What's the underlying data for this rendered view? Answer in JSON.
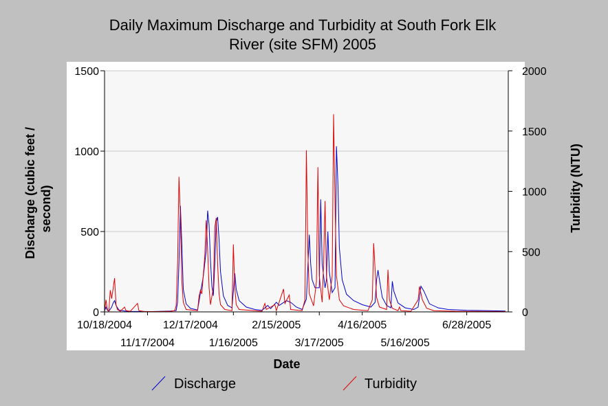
{
  "chart_data": {
    "type": "line",
    "title_line1": "Daily Maximum Discharge and Turbidity at South Fork Elk",
    "title_line2": "River (site SFM) 2005",
    "xlabel": "Date",
    "ylabel_left_line1": "Discharge (cubic feet /",
    "ylabel_left_line2": "second)",
    "ylabel_right": "Turbidity (NTU)",
    "xlim": [
      "2004-10-18",
      "2005-07-27"
    ],
    "ylim_left": [
      0,
      1500
    ],
    "ylim_right": [
      0,
      2000
    ],
    "x_ticks_top": [
      "10/18/2004",
      "12/17/2004",
      "2/15/2005",
      "4/16/2005",
      "6/28/2005"
    ],
    "x_ticks_bottom": [
      "11/17/2004",
      "1/16/2005",
      "3/17/2005",
      "5/16/2005"
    ],
    "y_ticks_left": [
      "0",
      "500",
      "1000",
      "1500"
    ],
    "y_ticks_right": [
      "0",
      "500",
      "1000",
      "1500",
      "2000"
    ],
    "grid": true,
    "legend_position": "bottom",
    "series": [
      {
        "name": "Discharge",
        "axis": "left",
        "color": "#0000cc",
        "points": [
          [
            "2004-10-18",
            5
          ],
          [
            "2004-10-19",
            30
          ],
          [
            "2004-10-20",
            10
          ],
          [
            "2004-10-21",
            4
          ],
          [
            "2004-10-23",
            30
          ],
          [
            "2004-10-24",
            55
          ],
          [
            "2004-10-25",
            70
          ],
          [
            "2004-10-26",
            40
          ],
          [
            "2004-10-28",
            12
          ],
          [
            "2004-11-01",
            5
          ],
          [
            "2004-11-05",
            3
          ],
          [
            "2004-11-20",
            2
          ],
          [
            "2004-11-28",
            4
          ],
          [
            "2004-12-03",
            5
          ],
          [
            "2004-12-07",
            8
          ],
          [
            "2004-12-08",
            60
          ],
          [
            "2004-12-09",
            300
          ],
          [
            "2004-12-10",
            660
          ],
          [
            "2004-12-11",
            420
          ],
          [
            "2004-12-12",
            140
          ],
          [
            "2004-12-14",
            50
          ],
          [
            "2004-12-17",
            22
          ],
          [
            "2004-12-22",
            12
          ],
          [
            "2004-12-24",
            120
          ],
          [
            "2004-12-26",
            220
          ],
          [
            "2004-12-28",
            380
          ],
          [
            "2004-12-29",
            630
          ],
          [
            "2004-12-30",
            540
          ],
          [
            "2004-12-31",
            320
          ],
          [
            "2005-01-01",
            160
          ],
          [
            "2005-01-02",
            100
          ],
          [
            "2005-01-03",
            300
          ],
          [
            "2005-01-04",
            560
          ],
          [
            "2005-01-05",
            590
          ],
          [
            "2005-01-06",
            450
          ],
          [
            "2005-01-07",
            250
          ],
          [
            "2005-01-09",
            100
          ],
          [
            "2005-01-12",
            40
          ],
          [
            "2005-01-15",
            25
          ],
          [
            "2005-01-17",
            240
          ],
          [
            "2005-01-18",
            140
          ],
          [
            "2005-01-20",
            70
          ],
          [
            "2005-01-25",
            30
          ],
          [
            "2005-01-31",
            15
          ],
          [
            "2005-02-05",
            10
          ],
          [
            "2005-02-09",
            40
          ],
          [
            "2005-02-11",
            20
          ],
          [
            "2005-02-15",
            60
          ],
          [
            "2005-02-17",
            40
          ],
          [
            "2005-02-22",
            70
          ],
          [
            "2005-02-25",
            60
          ],
          [
            "2005-03-01",
            30
          ],
          [
            "2005-03-05",
            15
          ],
          [
            "2005-03-08",
            80
          ],
          [
            "2005-03-10",
            480
          ],
          [
            "2005-03-11",
            300
          ],
          [
            "2005-03-12",
            200
          ],
          [
            "2005-03-14",
            150
          ],
          [
            "2005-03-17",
            150
          ],
          [
            "2005-03-18",
            700
          ],
          [
            "2005-03-19",
            300
          ],
          [
            "2005-03-21",
            150
          ],
          [
            "2005-03-22",
            200
          ],
          [
            "2005-03-23",
            500
          ],
          [
            "2005-03-24",
            250
          ],
          [
            "2005-03-26",
            120
          ],
          [
            "2005-03-28",
            150
          ],
          [
            "2005-03-29",
            1030
          ],
          [
            "2005-03-30",
            800
          ],
          [
            "2005-03-31",
            400
          ],
          [
            "2005-04-02",
            200
          ],
          [
            "2005-04-05",
            110
          ],
          [
            "2005-04-10",
            70
          ],
          [
            "2005-04-16",
            45
          ],
          [
            "2005-04-22",
            30
          ],
          [
            "2005-04-25",
            60
          ],
          [
            "2005-04-26",
            200
          ],
          [
            "2005-04-27",
            260
          ],
          [
            "2005-04-28",
            200
          ],
          [
            "2005-04-30",
            90
          ],
          [
            "2005-05-03",
            40
          ],
          [
            "2005-05-06",
            25
          ],
          [
            "2005-05-07",
            190
          ],
          [
            "2005-05-08",
            130
          ],
          [
            "2005-05-11",
            55
          ],
          [
            "2005-05-16",
            25
          ],
          [
            "2005-05-22",
            15
          ],
          [
            "2005-05-25",
            30
          ],
          [
            "2005-05-27",
            160
          ],
          [
            "2005-05-29",
            130
          ],
          [
            "2005-06-02",
            50
          ],
          [
            "2005-06-08",
            25
          ],
          [
            "2005-06-15",
            15
          ],
          [
            "2005-06-28",
            10
          ],
          [
            "2005-07-10",
            8
          ],
          [
            "2005-07-25",
            5
          ]
        ]
      },
      {
        "name": "Turbidity",
        "axis": "right",
        "color": "#e00000",
        "points": [
          [
            "2004-10-18",
            5
          ],
          [
            "2004-10-19",
            100
          ],
          [
            "2004-10-20",
            20
          ],
          [
            "2004-10-21",
            5
          ],
          [
            "2004-10-22",
            180
          ],
          [
            "2004-10-23",
            110
          ],
          [
            "2004-10-25",
            280
          ],
          [
            "2004-10-26",
            60
          ],
          [
            "2004-10-27",
            20
          ],
          [
            "2004-10-29",
            5
          ],
          [
            "2004-11-01",
            40
          ],
          [
            "2004-11-02",
            10
          ],
          [
            "2004-11-05",
            5
          ],
          [
            "2004-11-10",
            70
          ],
          [
            "2004-11-11",
            10
          ],
          [
            "2004-11-15",
            3
          ],
          [
            "2004-11-25",
            3
          ],
          [
            "2004-12-03",
            5
          ],
          [
            "2004-12-06",
            10
          ],
          [
            "2004-12-07",
            50
          ],
          [
            "2004-12-08",
            400
          ],
          [
            "2004-12-09",
            1120
          ],
          [
            "2004-12-10",
            800
          ],
          [
            "2004-12-11",
            250
          ],
          [
            "2004-12-12",
            80
          ],
          [
            "2004-12-14",
            20
          ],
          [
            "2004-12-22",
            10
          ],
          [
            "2004-12-23",
            130
          ],
          [
            "2004-12-24",
            180
          ],
          [
            "2004-12-25",
            150
          ],
          [
            "2004-12-27",
            460
          ],
          [
            "2004-12-28",
            760
          ],
          [
            "2004-12-29",
            520
          ],
          [
            "2004-12-30",
            200
          ],
          [
            "2004-12-31",
            60
          ],
          [
            "2005-01-02",
            200
          ],
          [
            "2005-01-03",
            700
          ],
          [
            "2005-01-04",
            780
          ],
          [
            "2005-01-05",
            400
          ],
          [
            "2005-01-06",
            150
          ],
          [
            "2005-01-07",
            60
          ],
          [
            "2005-01-10",
            20
          ],
          [
            "2005-01-15",
            10
          ],
          [
            "2005-01-16",
            560
          ],
          [
            "2005-01-17",
            200
          ],
          [
            "2005-01-18",
            60
          ],
          [
            "2005-01-20",
            20
          ],
          [
            "2005-02-05",
            5
          ],
          [
            "2005-02-07",
            70
          ],
          [
            "2005-02-08",
            20
          ],
          [
            "2005-02-14",
            60
          ],
          [
            "2005-02-15",
            10
          ],
          [
            "2005-02-20",
            190
          ],
          [
            "2005-02-21",
            70
          ],
          [
            "2005-02-24",
            140
          ],
          [
            "2005-02-25",
            20
          ],
          [
            "2005-03-05",
            10
          ],
          [
            "2005-03-07",
            100
          ],
          [
            "2005-03-08",
            1340
          ],
          [
            "2005-03-09",
            500
          ],
          [
            "2005-03-10",
            150
          ],
          [
            "2005-03-13",
            50
          ],
          [
            "2005-03-15",
            250
          ],
          [
            "2005-03-16",
            1200
          ],
          [
            "2005-03-17",
            300
          ],
          [
            "2005-03-19",
            80
          ],
          [
            "2005-03-20",
            400
          ],
          [
            "2005-03-21",
            920
          ],
          [
            "2005-03-22",
            300
          ],
          [
            "2005-03-24",
            100
          ],
          [
            "2005-03-26",
            300
          ],
          [
            "2005-03-27",
            1640
          ],
          [
            "2005-03-28",
            900
          ],
          [
            "2005-03-29",
            300
          ],
          [
            "2005-03-31",
            100
          ],
          [
            "2005-04-03",
            50
          ],
          [
            "2005-04-10",
            20
          ],
          [
            "2005-04-20",
            10
          ],
          [
            "2005-04-23",
            100
          ],
          [
            "2005-04-24",
            570
          ],
          [
            "2005-04-25",
            350
          ],
          [
            "2005-04-26",
            120
          ],
          [
            "2005-04-28",
            40
          ],
          [
            "2005-05-03",
            20
          ],
          [
            "2005-05-04",
            350
          ],
          [
            "2005-05-05",
            100
          ],
          [
            "2005-05-07",
            30
          ],
          [
            "2005-05-11",
            10
          ],
          [
            "2005-05-12",
            40
          ],
          [
            "2005-05-13",
            10
          ],
          [
            "2005-05-20",
            5
          ],
          [
            "2005-05-25",
            100
          ],
          [
            "2005-05-26",
            210
          ],
          [
            "2005-05-28",
            100
          ],
          [
            "2005-05-31",
            30
          ],
          [
            "2005-06-05",
            10
          ],
          [
            "2005-06-20",
            5
          ],
          [
            "2005-07-25",
            3
          ]
        ]
      }
    ]
  }
}
